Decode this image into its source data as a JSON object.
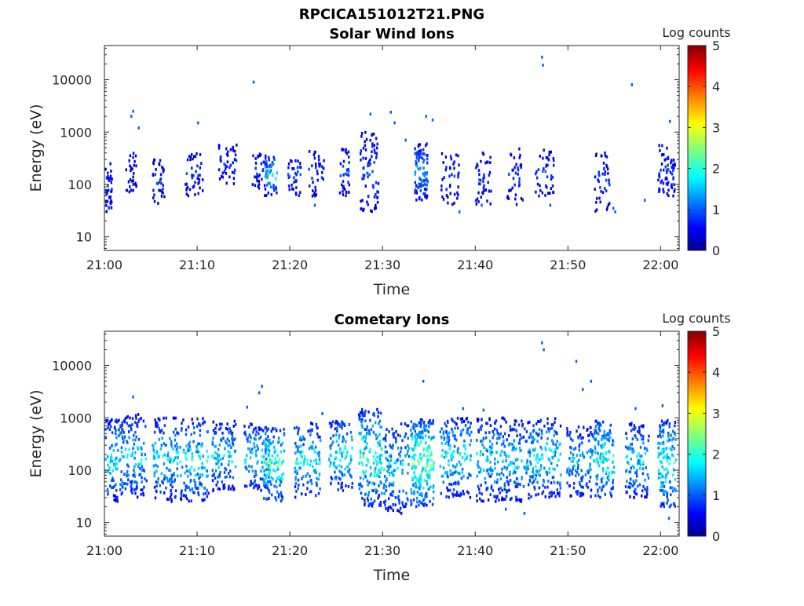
{
  "figure": {
    "filename": "RPCICA151012T21.PNG"
  },
  "colormap": {
    "name": "jet",
    "stops": [
      "#00008f",
      "#0000ff",
      "#00ffff",
      "#ffff00",
      "#ff0000",
      "#800000"
    ]
  },
  "chart_data": [
    {
      "type": "heatmap",
      "title": "Solar Wind Ions",
      "xlabel": "Time",
      "ylabel": "Energy (eV)",
      "x_ticks": [
        "21:00",
        "21:10",
        "21:20",
        "21:30",
        "21:40",
        "21:50",
        "22:00"
      ],
      "x_range_minutes": [
        0,
        62
      ],
      "y_scale": "log",
      "y_ticks": [
        "10",
        "100",
        "1000",
        "10000"
      ],
      "y_range": [
        5.5,
        45000
      ],
      "colorbar": {
        "label": "Log counts",
        "ticks": [
          "0",
          "1",
          "2",
          "3",
          "4",
          "5"
        ],
        "range": [
          0,
          5
        ]
      },
      "bursts": [
        {
          "t": 0.3,
          "w": 0.6,
          "lo": 30,
          "hi": 250,
          "peak": 1.0,
          "n": 14
        },
        {
          "t": 2.8,
          "w": 0.8,
          "lo": 60,
          "hi": 400,
          "peak": 0.6,
          "n": 10
        },
        {
          "t": 5.8,
          "w": 1.0,
          "lo": 40,
          "hi": 300,
          "peak": 1.0,
          "n": 12
        },
        {
          "t": 9.6,
          "w": 1.4,
          "lo": 60,
          "hi": 400,
          "peak": 1.0,
          "n": 14
        },
        {
          "t": 13.2,
          "w": 1.4,
          "lo": 100,
          "hi": 600,
          "peak": 1.0,
          "n": 14
        },
        {
          "t": 16.6,
          "w": 1.2,
          "lo": 80,
          "hi": 400,
          "peak": 1.0,
          "n": 12
        },
        {
          "t": 17.9,
          "w": 1.0,
          "lo": 60,
          "hi": 400,
          "peak": 2.0,
          "n": 14
        },
        {
          "t": 20.4,
          "w": 1.0,
          "lo": 60,
          "hi": 300,
          "peak": 1.2,
          "n": 12
        },
        {
          "t": 22.8,
          "w": 1.2,
          "lo": 60,
          "hi": 500,
          "peak": 1.0,
          "n": 12
        },
        {
          "t": 25.8,
          "w": 0.8,
          "lo": 60,
          "hi": 500,
          "peak": 1.2,
          "n": 12
        },
        {
          "t": 28.5,
          "w": 1.4,
          "lo": 30,
          "hi": 1000,
          "peak": 1.2,
          "n": 26
        },
        {
          "t": 34.1,
          "w": 1.0,
          "lo": 50,
          "hi": 600,
          "peak": 1.7,
          "n": 30
        },
        {
          "t": 37.2,
          "w": 1.4,
          "lo": 40,
          "hi": 400,
          "peak": 1.0,
          "n": 14
        },
        {
          "t": 40.8,
          "w": 1.2,
          "lo": 40,
          "hi": 400,
          "peak": 1.0,
          "n": 14
        },
        {
          "t": 44.2,
          "w": 1.2,
          "lo": 40,
          "hi": 500,
          "peak": 1.0,
          "n": 12
        },
        {
          "t": 47.4,
          "w": 1.4,
          "lo": 60,
          "hi": 500,
          "peak": 1.0,
          "n": 14
        },
        {
          "t": 53.6,
          "w": 1.2,
          "lo": 30,
          "hi": 400,
          "peak": 1.0,
          "n": 14
        },
        {
          "t": 60.2,
          "w": 0.8,
          "lo": 60,
          "hi": 600,
          "peak": 1.0,
          "n": 14
        },
        {
          "t": 61.2,
          "w": 0.4,
          "lo": 60,
          "hi": 300,
          "peak": 1.2,
          "n": 8
        }
      ],
      "sparse": [
        [
          16.0,
          9000,
          1.0
        ],
        [
          47.1,
          27000,
          1.0
        ],
        [
          47.2,
          19000,
          1.0
        ],
        [
          56.8,
          8000,
          1.0
        ],
        [
          3.0,
          2500,
          1.0
        ],
        [
          2.8,
          2000,
          1.0
        ],
        [
          3.6,
          1200,
          1.0
        ],
        [
          10.0,
          1500,
          1.0
        ],
        [
          28.6,
          2200,
          1.0
        ],
        [
          30.8,
          2400,
          1.0
        ],
        [
          31.2,
          1500,
          1.0
        ],
        [
          34.6,
          2000,
          1.0
        ],
        [
          35.3,
          1700,
          1.0
        ],
        [
          60.9,
          1600,
          1.0
        ],
        [
          32.4,
          700,
          1.0
        ],
        [
          55.0,
          30,
          1.0
        ],
        [
          54.8,
          35,
          1.0
        ],
        [
          40.6,
          40,
          1.0
        ],
        [
          48.0,
          40,
          1.0
        ],
        [
          38.2,
          30,
          1.0
        ],
        [
          22.6,
          40,
          1.0
        ],
        [
          0.4,
          35,
          1.0
        ],
        [
          58.2,
          50,
          1.0
        ]
      ]
    },
    {
      "type": "heatmap",
      "title": "Cometary Ions",
      "xlabel": "Time",
      "ylabel": "Energy (eV)",
      "x_ticks": [
        "21:00",
        "21:10",
        "21:20",
        "21:30",
        "21:40",
        "21:50",
        "22:00"
      ],
      "x_range_minutes": [
        0,
        62
      ],
      "y_scale": "log",
      "y_ticks": [
        "10",
        "100",
        "1000",
        "10000"
      ],
      "y_range": [
        5.5,
        45000
      ],
      "colorbar": {
        "label": "Log counts",
        "ticks": [
          "0",
          "1",
          "2",
          "3",
          "4",
          "5"
        ],
        "range": [
          0,
          5
        ]
      },
      "bursts": [
        {
          "t": 0.8,
          "w": 1.6,
          "lo": 25,
          "hi": 1000,
          "peak": 2.2,
          "n": 40
        },
        {
          "t": 3.2,
          "w": 1.8,
          "lo": 30,
          "hi": 1200,
          "peak": 2.0,
          "n": 40
        },
        {
          "t": 6.5,
          "w": 2.0,
          "lo": 25,
          "hi": 1000,
          "peak": 2.0,
          "n": 45
        },
        {
          "t": 9.6,
          "w": 2.2,
          "lo": 25,
          "hi": 1000,
          "peak": 2.2,
          "n": 45
        },
        {
          "t": 12.8,
          "w": 1.8,
          "lo": 40,
          "hi": 900,
          "peak": 2.0,
          "n": 40
        },
        {
          "t": 16.4,
          "w": 2.0,
          "lo": 40,
          "hi": 800,
          "peak": 2.0,
          "n": 40
        },
        {
          "t": 18.2,
          "w": 1.6,
          "lo": 25,
          "hi": 700,
          "peak": 2.6,
          "n": 40
        },
        {
          "t": 21.8,
          "w": 2.0,
          "lo": 30,
          "hi": 800,
          "peak": 2.2,
          "n": 40
        },
        {
          "t": 25.4,
          "w": 1.8,
          "lo": 40,
          "hi": 900,
          "peak": 2.3,
          "n": 40
        },
        {
          "t": 28.6,
          "w": 1.8,
          "lo": 20,
          "hi": 1500,
          "peak": 2.5,
          "n": 60
        },
        {
          "t": 31.4,
          "w": 2.0,
          "lo": 15,
          "hi": 800,
          "peak": 2.0,
          "n": 45
        },
        {
          "t": 34.2,
          "w": 1.8,
          "lo": 20,
          "hi": 1000,
          "peak": 2.9,
          "n": 70
        },
        {
          "t": 37.8,
          "w": 2.4,
          "lo": 30,
          "hi": 1000,
          "peak": 2.2,
          "n": 55
        },
        {
          "t": 41.6,
          "w": 2.2,
          "lo": 25,
          "hi": 1000,
          "peak": 2.0,
          "n": 50
        },
        {
          "t": 44.6,
          "w": 2.0,
          "lo": 25,
          "hi": 900,
          "peak": 2.0,
          "n": 45
        },
        {
          "t": 47.6,
          "w": 2.2,
          "lo": 30,
          "hi": 1000,
          "peak": 2.2,
          "n": 50
        },
        {
          "t": 51.2,
          "w": 2.0,
          "lo": 30,
          "hi": 700,
          "peak": 1.8,
          "n": 40
        },
        {
          "t": 53.8,
          "w": 1.6,
          "lo": 30,
          "hi": 900,
          "peak": 2.5,
          "n": 45
        },
        {
          "t": 57.4,
          "w": 1.8,
          "lo": 30,
          "hi": 800,
          "peak": 2.0,
          "n": 40
        },
        {
          "t": 60.6,
          "w": 1.4,
          "lo": 20,
          "hi": 900,
          "peak": 2.5,
          "n": 45
        }
      ],
      "sparse": [
        [
          47.1,
          27000,
          1.0
        ],
        [
          47.3,
          20000,
          1.0
        ],
        [
          50.8,
          12000,
          1.0
        ],
        [
          52.4,
          5000,
          1.0
        ],
        [
          51.5,
          3500,
          1.0
        ],
        [
          34.3,
          5000,
          1.0
        ],
        [
          16.9,
          4000,
          1.0
        ],
        [
          16.6,
          3000,
          1.0
        ],
        [
          3.0,
          2500,
          1.0
        ],
        [
          15.3,
          1600,
          1.0
        ],
        [
          23.4,
          1200,
          1.0
        ],
        [
          40.8,
          1400,
          1.0
        ],
        [
          38.6,
          1500,
          1.0
        ],
        [
          45.2,
          15,
          1.0
        ],
        [
          60.8,
          12,
          1.0
        ],
        [
          43.2,
          18,
          1.0
        ],
        [
          57.2,
          1500,
          1.0
        ],
        [
          60.1,
          1700,
          1.0
        ]
      ]
    }
  ]
}
